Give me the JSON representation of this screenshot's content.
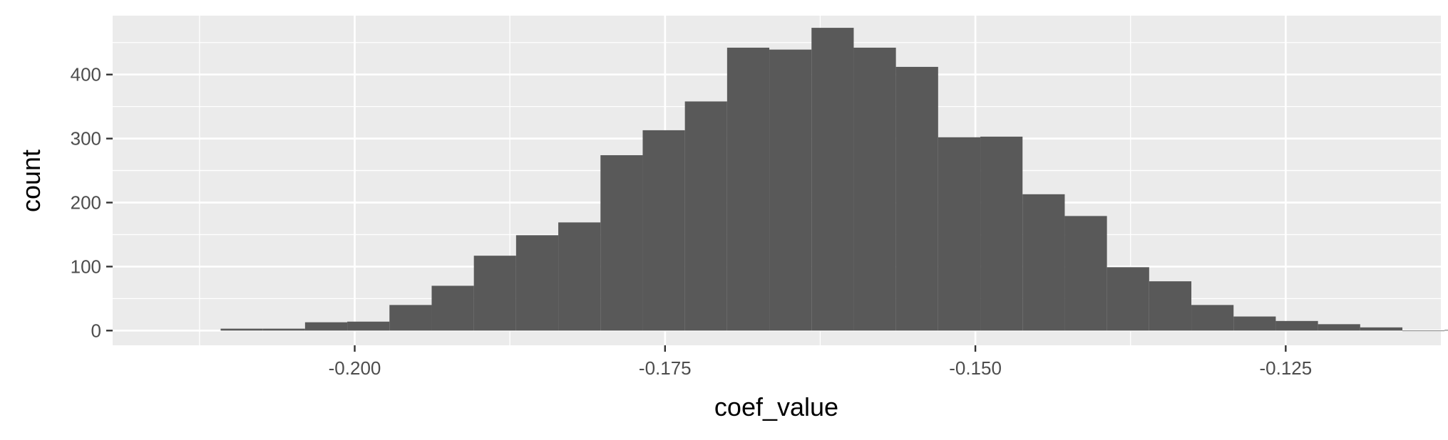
{
  "chart_data": {
    "type": "bar",
    "title": "",
    "xlabel": "coef_value",
    "ylabel": "count",
    "bin_width": 0.0034,
    "xlim": [
      -0.2195,
      -0.1125
    ],
    "ylim": [
      -23,
      492
    ],
    "x_ticks": [
      -0.2,
      -0.175,
      -0.15,
      -0.125
    ],
    "x_tick_labels": [
      "-0.200",
      "-0.175",
      "-0.150",
      "-0.125"
    ],
    "y_ticks": [
      0,
      100,
      200,
      300,
      400
    ],
    "y_tick_labels": [
      "0",
      "100",
      "200",
      "300",
      "400"
    ],
    "grid": true,
    "legend": "none",
    "bins": [
      {
        "x": -0.2091,
        "count": 3
      },
      {
        "x": -0.2057,
        "count": 3
      },
      {
        "x": -0.2023,
        "count": 13
      },
      {
        "x": -0.1989,
        "count": 14
      },
      {
        "x": -0.1955,
        "count": 40
      },
      {
        "x": -0.1921,
        "count": 70
      },
      {
        "x": -0.1887,
        "count": 117
      },
      {
        "x": -0.1853,
        "count": 149
      },
      {
        "x": -0.1819,
        "count": 169
      },
      {
        "x": -0.1785,
        "count": 274
      },
      {
        "x": -0.1751,
        "count": 313
      },
      {
        "x": -0.1717,
        "count": 358
      },
      {
        "x": -0.1683,
        "count": 442
      },
      {
        "x": -0.1649,
        "count": 439
      },
      {
        "x": -0.1615,
        "count": 473
      },
      {
        "x": -0.1581,
        "count": 442
      },
      {
        "x": -0.1547,
        "count": 412
      },
      {
        "x": -0.1513,
        "count": 302
      },
      {
        "x": -0.1479,
        "count": 303
      },
      {
        "x": -0.1445,
        "count": 213
      },
      {
        "x": -0.1411,
        "count": 179
      },
      {
        "x": -0.1377,
        "count": 99
      },
      {
        "x": -0.1343,
        "count": 77
      },
      {
        "x": -0.1309,
        "count": 40
      },
      {
        "x": -0.1275,
        "count": 22
      },
      {
        "x": -0.1241,
        "count": 15
      },
      {
        "x": -0.1207,
        "count": 10
      },
      {
        "x": -0.1173,
        "count": 5
      },
      {
        "x": -0.1139,
        "count": 0
      },
      {
        "x": -0.1105,
        "count": 1
      }
    ],
    "colors": {
      "panel": "#ebebeb",
      "grid": "#ffffff",
      "bar": "#595959",
      "tick": "#333333"
    }
  }
}
